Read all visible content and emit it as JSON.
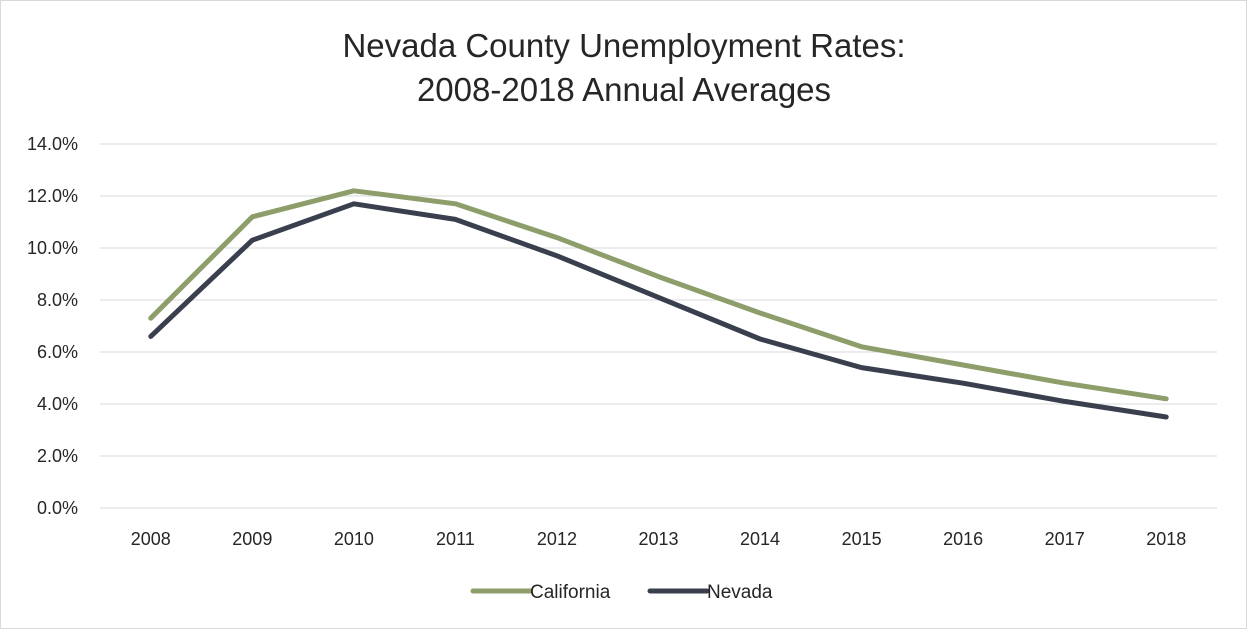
{
  "chart_data": {
    "type": "line",
    "title": [
      "Nevada County Unemployment Rates:",
      "2008-2018 Annual Averages"
    ],
    "xlabel": "",
    "ylabel": "",
    "categories": [
      "2008",
      "2009",
      "2010",
      "2011",
      "2012",
      "2013",
      "2014",
      "2015",
      "2016",
      "2017",
      "2018"
    ],
    "ylim": [
      0,
      14
    ],
    "yticks": [
      0,
      2,
      4,
      6,
      8,
      10,
      12,
      14
    ],
    "ytick_labels": [
      "0.0%",
      "2.0%",
      "4.0%",
      "6.0%",
      "8.0%",
      "10.0%",
      "12.0%",
      "14.0%"
    ],
    "grid": true,
    "legend_position": "bottom",
    "series": [
      {
        "name": "California",
        "color": "#8d9e6b",
        "values": [
          7.3,
          11.2,
          12.2,
          11.7,
          10.4,
          8.9,
          7.5,
          6.2,
          5.5,
          4.8,
          4.2
        ]
      },
      {
        "name": "Nevada",
        "color": "#3a3f4e",
        "values": [
          6.6,
          10.3,
          11.7,
          11.1,
          9.7,
          8.1,
          6.5,
          5.4,
          4.8,
          4.1,
          3.5
        ]
      }
    ]
  }
}
